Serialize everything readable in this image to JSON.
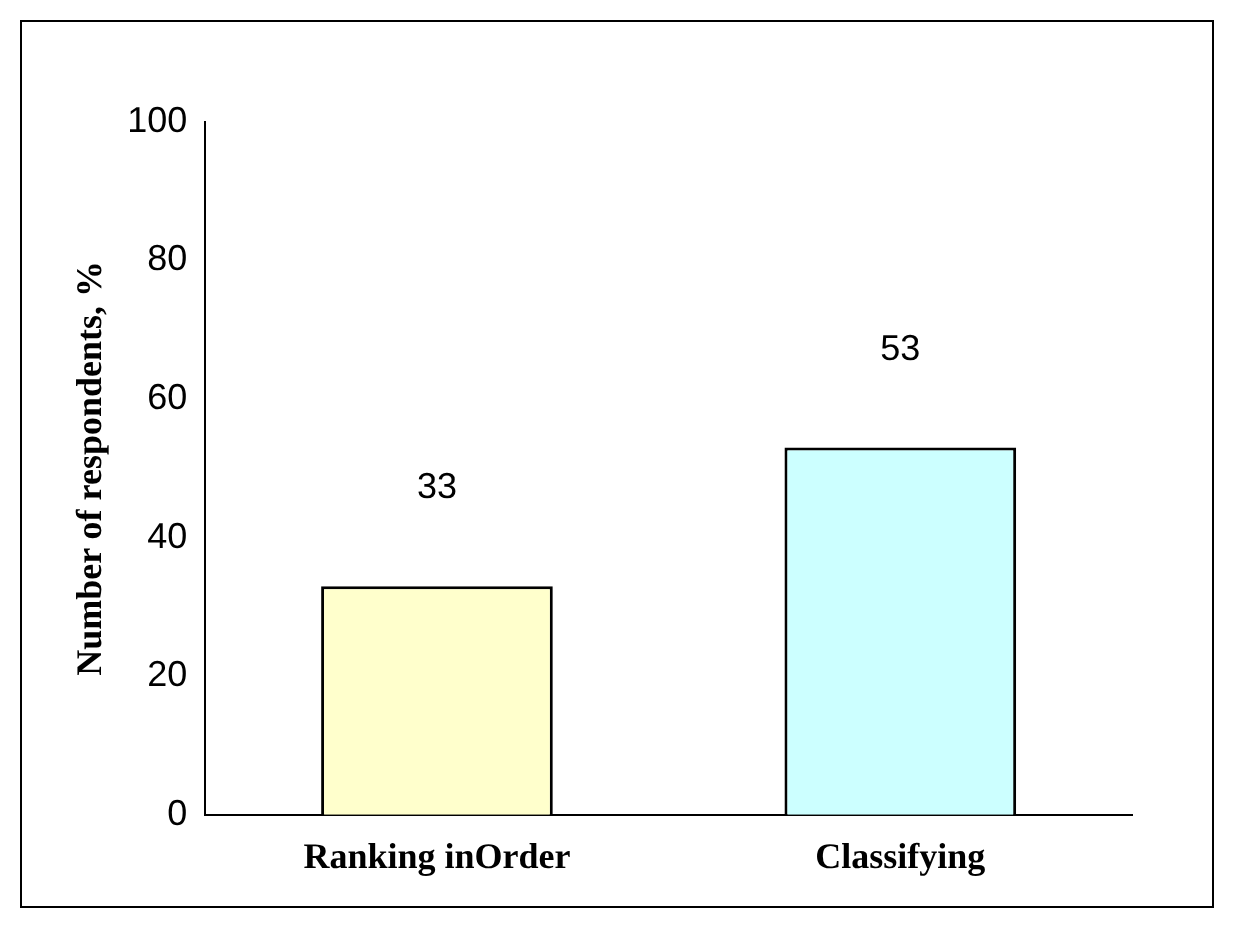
{
  "chart_data": {
    "type": "bar",
    "ylabel": "Number of respondents, %",
    "categories": [
      "Ranking inOrder",
      "Classifying"
    ],
    "values": [
      33,
      53
    ],
    "colors": [
      "#ffffcc",
      "#ccffff"
    ],
    "ylim": [
      0,
      100
    ],
    "yticks": [
      0,
      20,
      40,
      60,
      80,
      100
    ],
    "grid": false,
    "legend": false,
    "data_labels": true
  }
}
